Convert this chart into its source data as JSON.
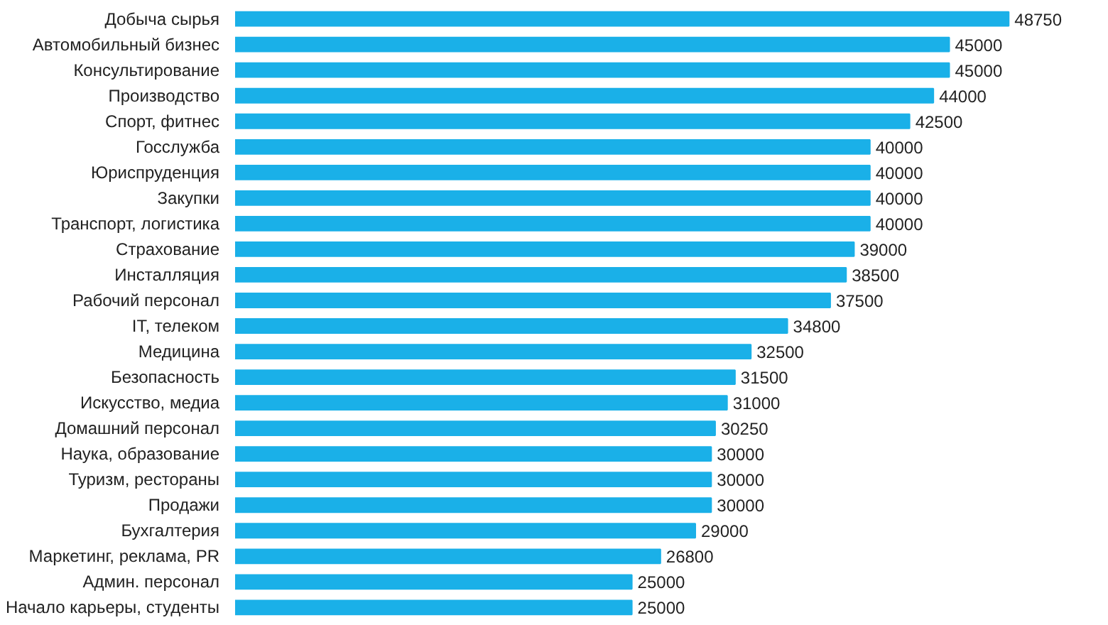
{
  "chart_data": {
    "type": "bar",
    "orientation": "horizontal",
    "data_labels": true,
    "color": "#1ab0e8",
    "categories": [
      "Добыча сырья",
      "Автомобильный бизнес",
      "Консультирование",
      "Производство",
      "Спорт, фитнес",
      "Госслужба",
      "Юриспруденция",
      "Закупки",
      "Транспорт, логистика",
      "Страхование",
      "Инсталляция",
      "Рабочий персонал",
      "IT, телеком",
      "Медицина",
      "Безопасность",
      "Искусство, медиа",
      "Домашний персонал",
      "Наука, образование",
      "Туризм, рестораны",
      "Продажи",
      "Бухгалтерия",
      "Маркетинг, реклама, PR",
      "Админ. персонал",
      "Начало карьеры, студенты"
    ],
    "values": [
      48750,
      45000,
      45000,
      44000,
      42500,
      40000,
      40000,
      40000,
      40000,
      39000,
      38500,
      37500,
      34800,
      32500,
      31500,
      31000,
      30250,
      30000,
      30000,
      30000,
      29000,
      26800,
      25000,
      25000
    ]
  }
}
